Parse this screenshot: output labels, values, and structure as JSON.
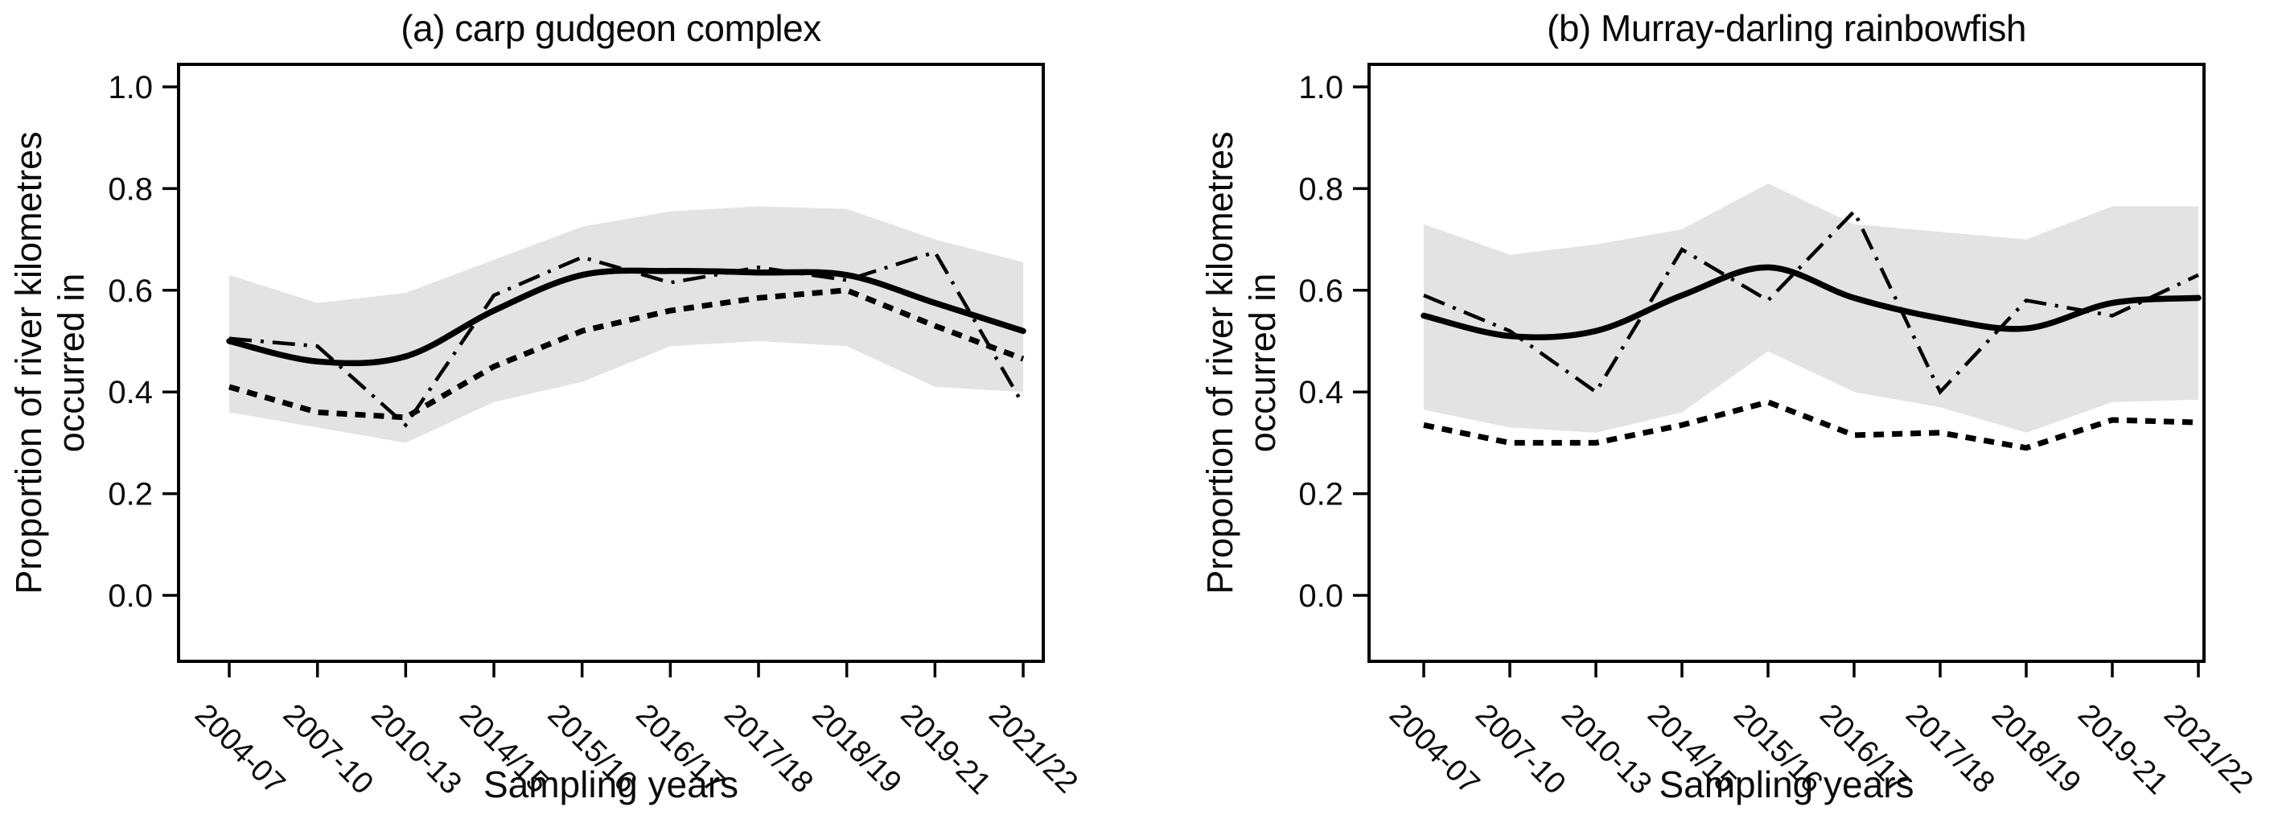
{
  "figure": {
    "background_color": "#ffffff",
    "line_color": "#000000",
    "band_color": "#e3e3e3",
    "text_color": "#0b0b0b",
    "xlabel": "Sampling years",
    "ylabel_lines": [
      "Proportion of river kilometres",
      "occurred in"
    ]
  },
  "chart_data": [
    {
      "type": "line",
      "title": "(a) carp gudgeon complex",
      "xlabel": "Sampling years",
      "ylabel": "Proportion of river kilometres occurred in",
      "ylim": [
        0.0,
        1.0
      ],
      "grid": false,
      "legend": "none",
      "y_ticks": [
        {
          "value": 1.0,
          "label": "1.0"
        },
        {
          "value": 0.8,
          "label": "0.8"
        },
        {
          "value": 0.6,
          "label": "0.6"
        },
        {
          "value": 0.4,
          "label": "0.4"
        },
        {
          "value": 0.2,
          "label": "0.2"
        },
        {
          "value": 0.0,
          "label": "0.0"
        }
      ],
      "categories": [
        "2004-07",
        "2007-10",
        "2010-13",
        "2014/15",
        "2015/16",
        "2016/17",
        "2017/18",
        "2018/19",
        "2019-21",
        "2021/22"
      ],
      "series": [
        {
          "name": "solid-smoothed-line",
          "style": "solid",
          "smooth": true,
          "values": [
            0.5,
            0.46,
            0.47,
            0.56,
            0.63,
            0.638,
            0.635,
            0.63,
            0.575,
            0.52
          ]
        },
        {
          "name": "bold-dashed-line",
          "style": "dashed",
          "smooth": false,
          "values": [
            0.41,
            0.36,
            0.35,
            0.45,
            0.52,
            0.56,
            0.585,
            0.6,
            0.53,
            0.465
          ]
        },
        {
          "name": "dash-dot-line",
          "style": "dashdot",
          "smooth": false,
          "values": [
            0.505,
            0.49,
            0.335,
            0.59,
            0.665,
            0.615,
            0.645,
            0.62,
            0.675,
            0.375
          ]
        }
      ],
      "band": {
        "name": "shaded-confidence-band",
        "lower": [
          0.36,
          0.33,
          0.3,
          0.38,
          0.42,
          0.49,
          0.5,
          0.49,
          0.41,
          0.4
        ],
        "upper": [
          0.63,
          0.575,
          0.595,
          0.66,
          0.725,
          0.755,
          0.765,
          0.76,
          0.7,
          0.655
        ]
      }
    },
    {
      "type": "line",
      "title": "(b) Murray-darling rainbowfish",
      "xlabel": "Sampling years",
      "ylabel": "Proportion of river kilometres occurred in",
      "ylim": [
        0.0,
        1.0
      ],
      "grid": false,
      "legend": "none",
      "y_ticks": [
        {
          "value": 1.0,
          "label": "1.0"
        },
        {
          "value": 0.8,
          "label": "0.8"
        },
        {
          "value": 0.6,
          "label": "0.6"
        },
        {
          "value": 0.4,
          "label": "0.4"
        },
        {
          "value": 0.2,
          "label": "0.2"
        },
        {
          "value": 0.0,
          "label": "0.0"
        }
      ],
      "categories": [
        "2004-07",
        "2007-10",
        "2010-13",
        "2014/15",
        "2015/16",
        "2016/17",
        "2017/18",
        "2018/19",
        "2019-21",
        "2021/22"
      ],
      "series": [
        {
          "name": "solid-smoothed-line",
          "style": "solid",
          "smooth": true,
          "values": [
            0.55,
            0.51,
            0.52,
            0.59,
            0.645,
            0.585,
            0.545,
            0.525,
            0.575,
            0.585
          ]
        },
        {
          "name": "bold-dashed-line",
          "style": "dashed",
          "smooth": false,
          "values": [
            0.335,
            0.3,
            0.3,
            0.335,
            0.38,
            0.315,
            0.32,
            0.29,
            0.345,
            0.34
          ]
        },
        {
          "name": "dash-dot-line",
          "style": "dashdot",
          "smooth": false,
          "values": [
            0.59,
            0.52,
            0.4,
            0.68,
            0.58,
            0.755,
            0.4,
            0.58,
            0.55,
            0.63
          ]
        }
      ],
      "band": {
        "name": "shaded-confidence-band",
        "lower": [
          0.365,
          0.33,
          0.32,
          0.36,
          0.48,
          0.4,
          0.37,
          0.32,
          0.38,
          0.385
        ],
        "upper": [
          0.73,
          0.67,
          0.69,
          0.72,
          0.81,
          0.73,
          0.715,
          0.7,
          0.765,
          0.765
        ]
      }
    }
  ]
}
